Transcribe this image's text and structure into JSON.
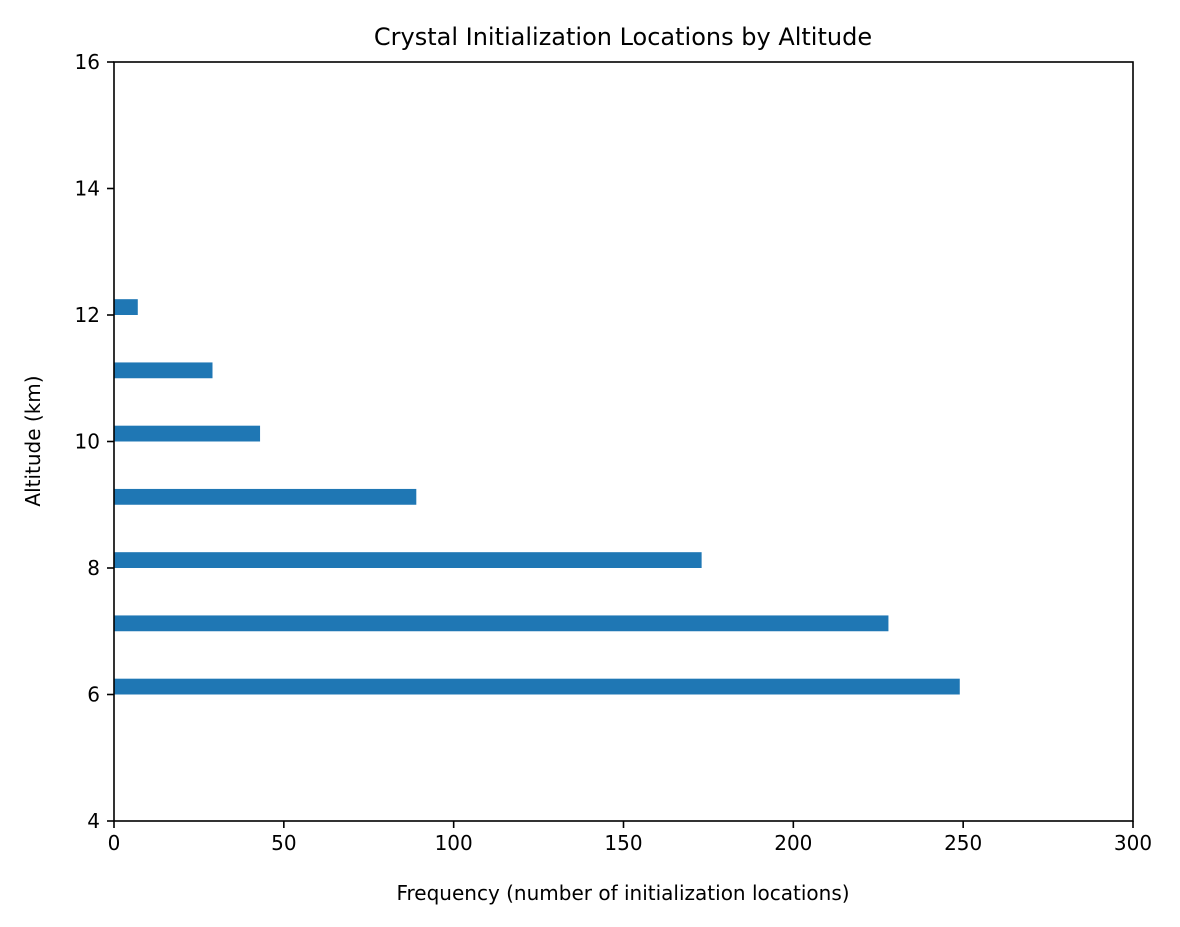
{
  "chart_data": {
    "type": "bar",
    "orientation": "horizontal",
    "title": "Crystal Initialization Locations by Altitude",
    "xlabel": "Frequency (number of initialization locations)",
    "ylabel": "Altitude (km)",
    "xlim": [
      0,
      300
    ],
    "ylim": [
      4,
      16
    ],
    "xticks": [
      0,
      50,
      100,
      150,
      200,
      250,
      300
    ],
    "yticks": [
      4,
      6,
      8,
      10,
      12,
      14,
      16
    ],
    "grid": false,
    "color": "#1f77b4",
    "bar_height": 0.25,
    "bars": [
      {
        "altitude": 6,
        "value": 249
      },
      {
        "altitude": 7,
        "value": 228
      },
      {
        "altitude": 8,
        "value": 173
      },
      {
        "altitude": 9,
        "value": 89
      },
      {
        "altitude": 10,
        "value": 43
      },
      {
        "altitude": 11,
        "value": 29
      },
      {
        "altitude": 12,
        "value": 7
      }
    ]
  }
}
